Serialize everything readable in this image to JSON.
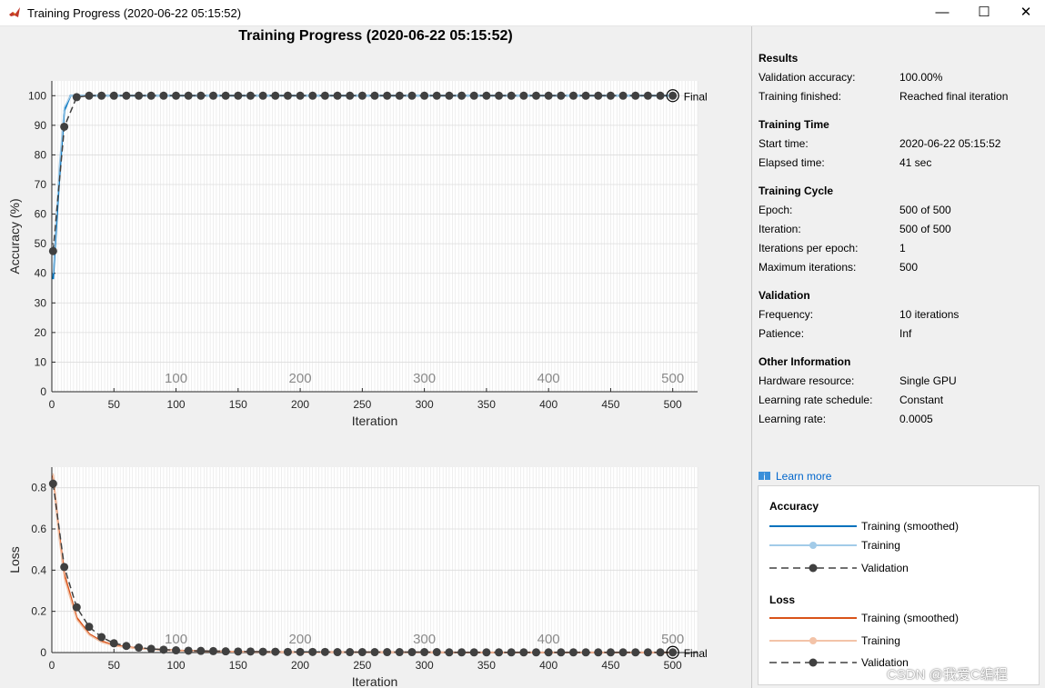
{
  "window": {
    "title": "Training Progress (2020-06-22 05:15:52)",
    "minimize_glyph": "—",
    "maximize_glyph": "☐",
    "close_glyph": "✕"
  },
  "plot": {
    "title": "Training Progress (2020-06-22 05:15:52)",
    "final_label": "Final"
  },
  "chart_data": [
    {
      "type": "line",
      "title": "",
      "xlabel": "Iteration",
      "ylabel": "Accuracy (%)",
      "xlim": [
        0,
        520
      ],
      "ylim": [
        0,
        105
      ],
      "xticks": [
        "0",
        "50",
        "100",
        "150",
        "200",
        "250",
        "300",
        "350",
        "400",
        "450",
        "500"
      ],
      "yticks": [
        "0",
        "10",
        "20",
        "30",
        "40",
        "50",
        "60",
        "70",
        "80",
        "90",
        "100"
      ],
      "epoch_labels": [
        "100",
        "200",
        "300",
        "400",
        "500"
      ],
      "grid": true,
      "series": [
        {
          "name": "Training (smoothed)",
          "color": "#0072bd",
          "x": [
            1,
            3,
            6,
            10,
            15,
            20,
            30,
            500
          ],
          "values": [
            38,
            52,
            72,
            95,
            100,
            100,
            100,
            100
          ]
        },
        {
          "name": "Training",
          "color": "#a2cbe8",
          "x": [
            1,
            3,
            6,
            10,
            15,
            20,
            30,
            500
          ],
          "values": [
            40,
            55,
            76,
            96,
            100,
            100,
            100,
            100
          ]
        },
        {
          "name": "Validation",
          "color": "#404040",
          "x": [
            1,
            10,
            20,
            30,
            40,
            50,
            60,
            70,
            80,
            90,
            100,
            110,
            120,
            130,
            140,
            150,
            160,
            170,
            180,
            190,
            200,
            210,
            220,
            230,
            240,
            250,
            260,
            270,
            280,
            290,
            300,
            310,
            320,
            330,
            340,
            350,
            360,
            370,
            380,
            390,
            400,
            410,
            420,
            430,
            440,
            450,
            460,
            470,
            480,
            490,
            500
          ],
          "values": [
            47.5,
            89.5,
            99.5,
            100,
            100,
            100,
            100,
            100,
            100,
            100,
            100,
            100,
            100,
            100,
            100,
            100,
            100,
            100,
            100,
            100,
            100,
            100,
            100,
            100,
            100,
            100,
            100,
            100,
            100,
            100,
            100,
            100,
            100,
            100,
            100,
            100,
            100,
            100,
            100,
            100,
            100,
            100,
            100,
            100,
            100,
            100,
            100,
            100,
            100,
            100,
            100
          ]
        }
      ]
    },
    {
      "type": "line",
      "title": "",
      "xlabel": "Iteration",
      "ylabel": "Loss",
      "xlim": [
        0,
        520
      ],
      "ylim": [
        0,
        0.9
      ],
      "xticks": [
        "0",
        "50",
        "100",
        "150",
        "200",
        "250",
        "300",
        "350",
        "400",
        "450",
        "500"
      ],
      "yticks": [
        "0",
        "0.2",
        "0.4",
        "0.6",
        "0.8"
      ],
      "epoch_labels": [
        "100",
        "200",
        "300",
        "400",
        "500"
      ],
      "grid": true,
      "series": [
        {
          "name": "Training (smoothed)",
          "color": "#d95319",
          "x": [
            1,
            5,
            10,
            20,
            30,
            40,
            50,
            70,
            100,
            150,
            200,
            300,
            500
          ],
          "values": [
            0.86,
            0.62,
            0.38,
            0.17,
            0.09,
            0.055,
            0.035,
            0.02,
            0.01,
            0.004,
            0.002,
            0.001,
            0.0005
          ]
        },
        {
          "name": "Training",
          "color": "#f3c3a8",
          "x": [
            1,
            5,
            10,
            20,
            30,
            40,
            50,
            70,
            100,
            150,
            200,
            300,
            500
          ],
          "values": [
            0.87,
            0.6,
            0.36,
            0.16,
            0.085,
            0.05,
            0.032,
            0.018,
            0.009,
            0.004,
            0.002,
            0.001,
            0.0005
          ]
        },
        {
          "name": "Validation",
          "color": "#404040",
          "x": [
            1,
            10,
            20,
            30,
            40,
            50,
            60,
            70,
            80,
            90,
            100,
            110,
            120,
            130,
            140,
            150,
            160,
            170,
            180,
            190,
            200,
            210,
            220,
            230,
            240,
            250,
            260,
            270,
            280,
            290,
            300,
            310,
            320,
            330,
            340,
            350,
            360,
            370,
            380,
            390,
            400,
            410,
            420,
            430,
            440,
            450,
            460,
            470,
            480,
            490,
            500
          ],
          "values": [
            0.82,
            0.415,
            0.22,
            0.125,
            0.075,
            0.045,
            0.032,
            0.024,
            0.018,
            0.014,
            0.011,
            0.009,
            0.008,
            0.007,
            0.006,
            0.005,
            0.005,
            0.004,
            0.004,
            0.003,
            0.003,
            0.003,
            0.003,
            0.002,
            0.002,
            0.002,
            0.002,
            0.002,
            0.002,
            0.002,
            0.002,
            0.002,
            0.001,
            0.001,
            0.001,
            0.001,
            0.001,
            0.001,
            0.001,
            0.001,
            0.001,
            0.001,
            0.001,
            0.001,
            0.001,
            0.001,
            0.001,
            0.001,
            0.001,
            0.001,
            0.001
          ]
        }
      ]
    }
  ],
  "info": {
    "results": {
      "heading": "Results",
      "rows": [
        {
          "key": "Validation accuracy:",
          "value": "100.00%"
        },
        {
          "key": "Training finished:",
          "value": "Reached final iteration"
        }
      ]
    },
    "training_time": {
      "heading": "Training Time",
      "rows": [
        {
          "key": "Start time:",
          "value": "2020-06-22 05:15:52"
        },
        {
          "key": "Elapsed time:",
          "value": "41 sec"
        }
      ]
    },
    "training_cycle": {
      "heading": "Training Cycle",
      "rows": [
        {
          "key": "Epoch:",
          "value": "500 of 500"
        },
        {
          "key": "Iteration:",
          "value": "500 of 500"
        },
        {
          "key": "Iterations per epoch:",
          "value": "1"
        },
        {
          "key": "Maximum iterations:",
          "value": "500"
        }
      ]
    },
    "validation": {
      "heading": "Validation",
      "rows": [
        {
          "key": "Frequency:",
          "value": "10 iterations"
        },
        {
          "key": "Patience:",
          "value": "Inf"
        }
      ]
    },
    "other": {
      "heading": "Other Information",
      "rows": [
        {
          "key": "Hardware resource:",
          "value": "Single GPU"
        },
        {
          "key": "Learning rate schedule:",
          "value": "Constant"
        },
        {
          "key": "Learning rate:",
          "value": "0.0005"
        }
      ]
    },
    "learn_more": "Learn more"
  },
  "legend": {
    "accuracy_heading": "Accuracy",
    "loss_heading": "Loss",
    "accuracy_items": [
      {
        "label": "Training (smoothed)",
        "color": "#0072bd",
        "marker": false,
        "dashed": false
      },
      {
        "label": "Training",
        "color": "#a2cbe8",
        "marker": true,
        "dashed": false
      },
      {
        "label": "Validation",
        "color": "#404040",
        "marker": true,
        "dashed": true
      }
    ],
    "loss_items": [
      {
        "label": "Training (smoothed)",
        "color": "#d95319",
        "marker": false,
        "dashed": false
      },
      {
        "label": "Training",
        "color": "#f3c3a8",
        "marker": true,
        "dashed": false
      },
      {
        "label": "Validation",
        "color": "#404040",
        "marker": true,
        "dashed": true
      }
    ]
  },
  "watermark": "CSDN @我爱C编程"
}
